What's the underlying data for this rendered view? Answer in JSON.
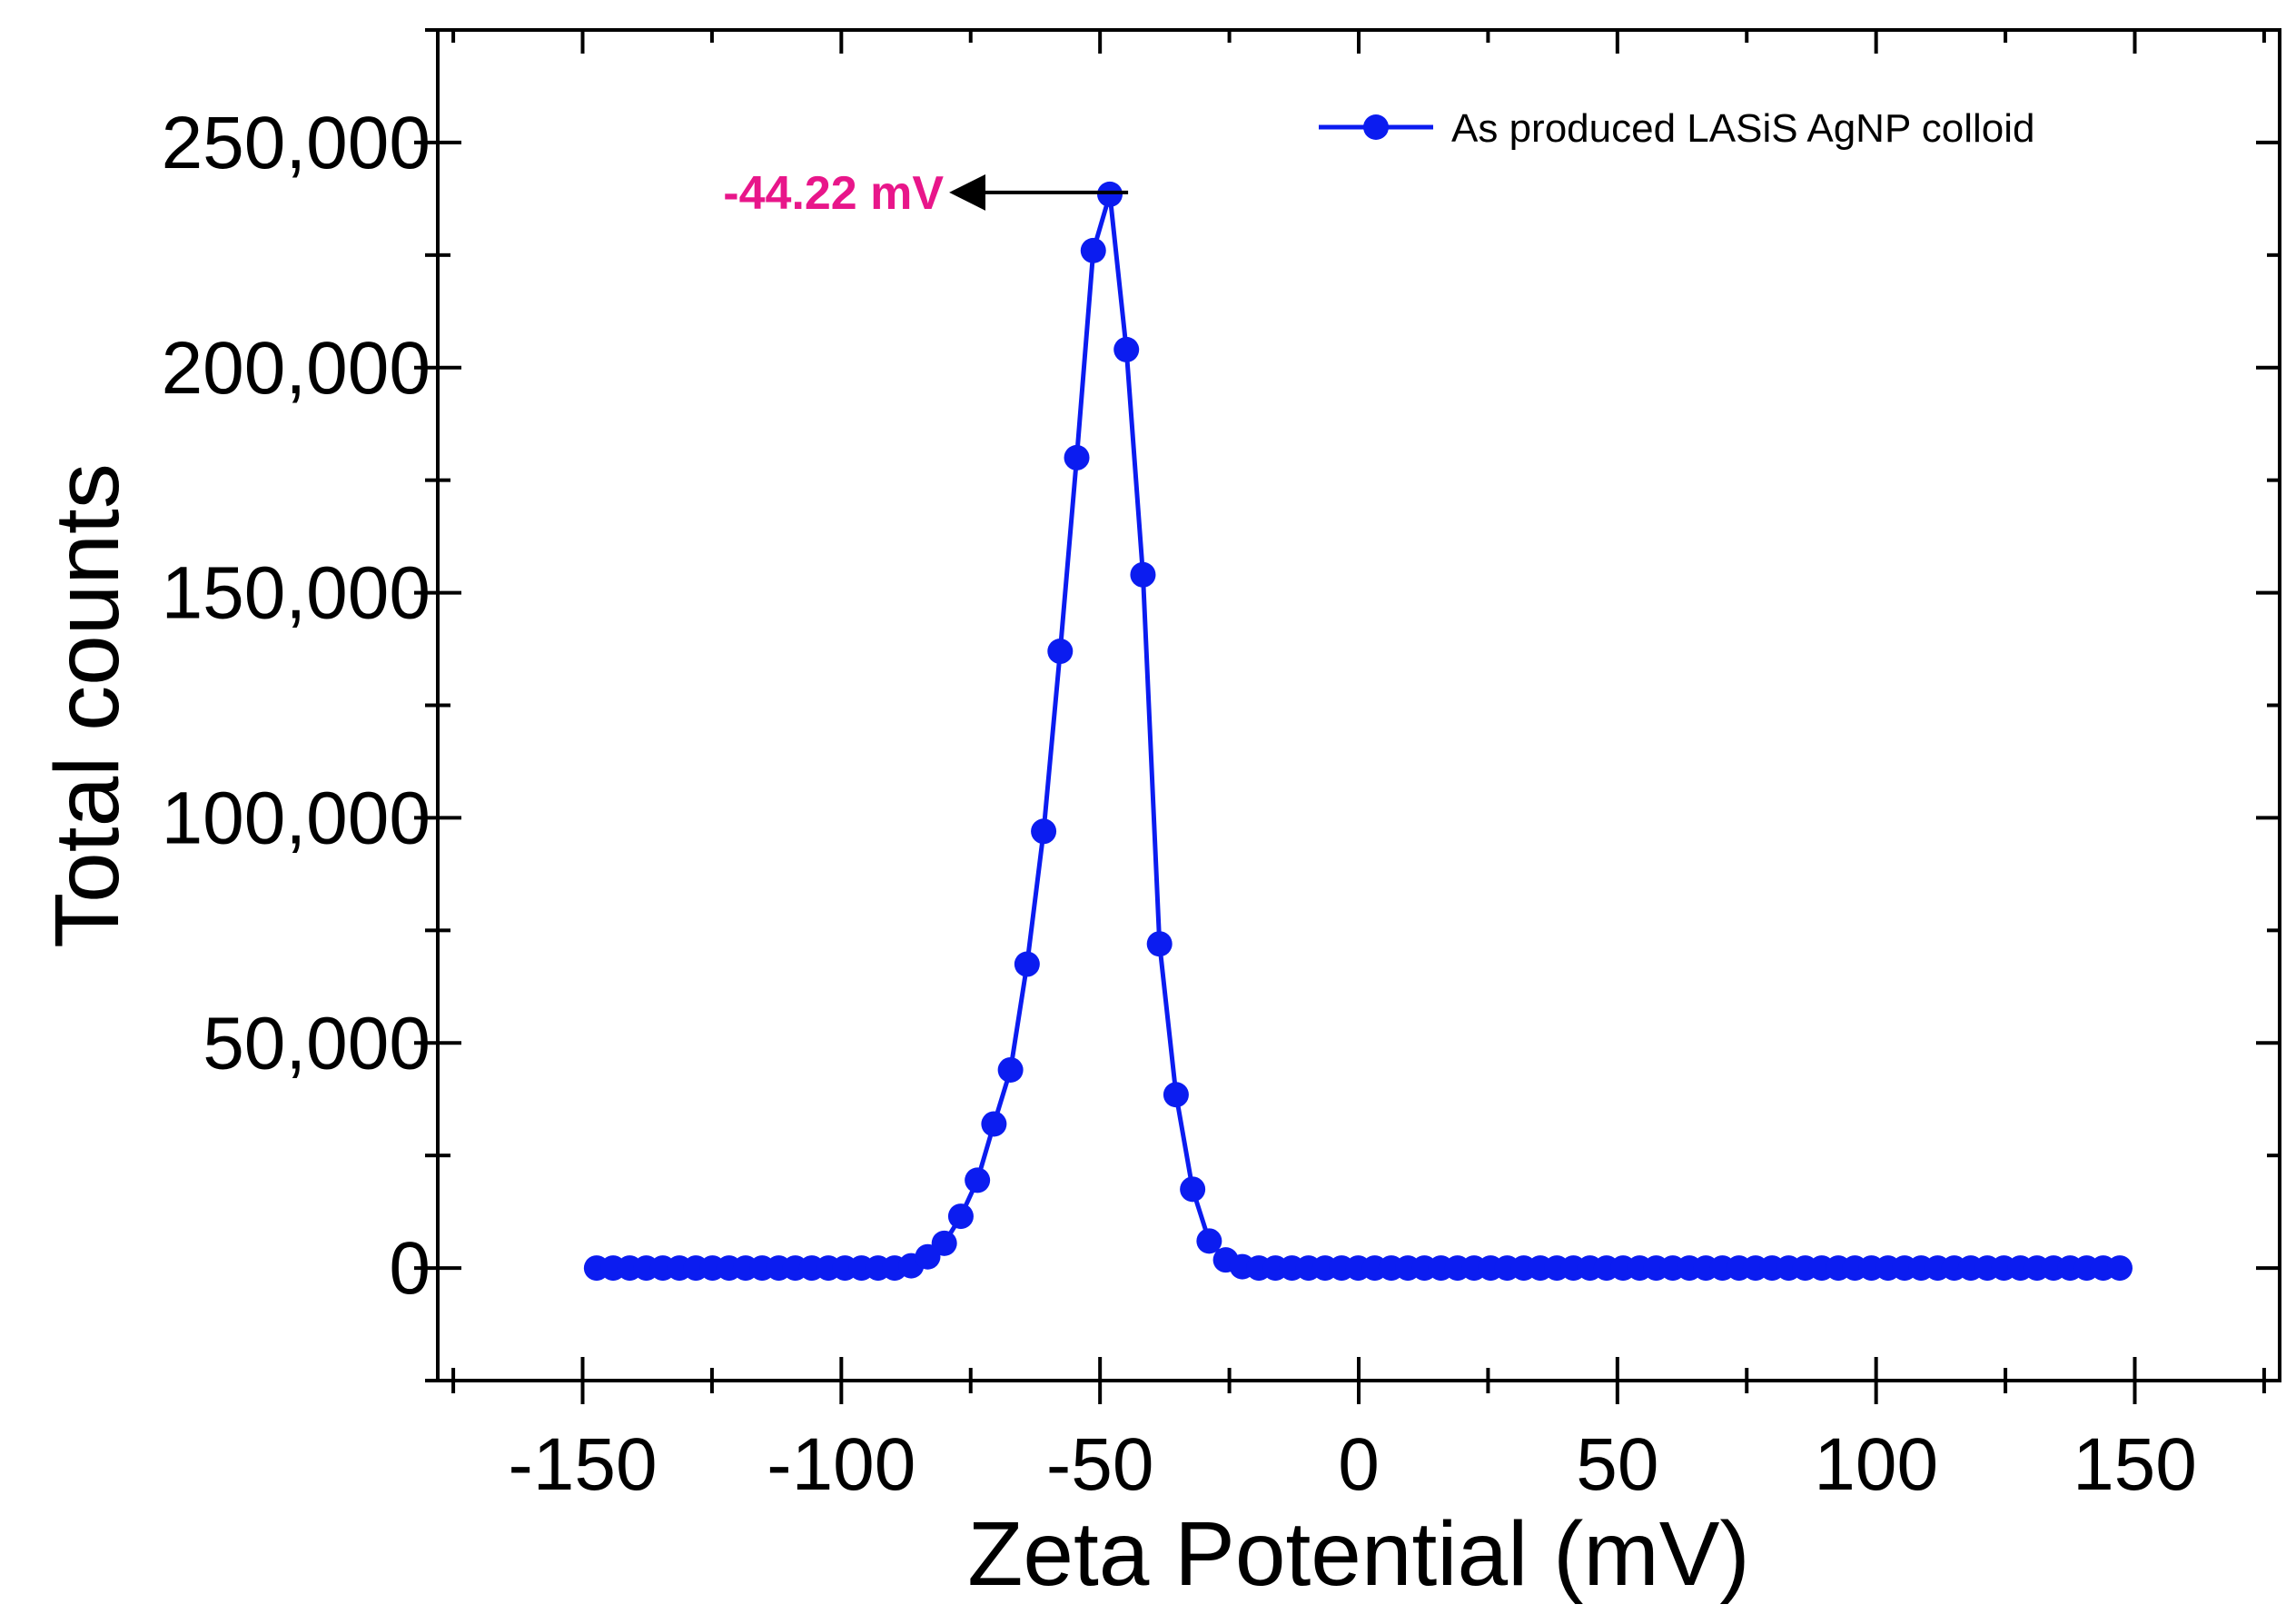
{
  "chart_data": {
    "type": "line",
    "title": "",
    "xlabel": "Zeta Potential (mV)",
    "ylabel": "Total counts",
    "xlim": [
      -178,
      178
    ],
    "ylim": [
      -25000,
      275000
    ],
    "xticks": [
      -150,
      -100,
      -50,
      0,
      50,
      100,
      150
    ],
    "xtick_labels": [
      "-150",
      "-100",
      "-50",
      "0",
      "50",
      "100",
      "150"
    ],
    "yticks": [
      0,
      50000,
      100000,
      150000,
      200000,
      250000
    ],
    "ytick_labels": [
      "0",
      "50,000",
      "100,000",
      "150,000",
      "200,000",
      "250,000"
    ],
    "legend_position": "top-right",
    "series": [
      {
        "name": "As produced LASiS AgNP colloid",
        "color": "#0b1cf0",
        "x": [
          -147.3,
          -144.1,
          -140.9,
          -137.7,
          -134.5,
          -131.3,
          -128.1,
          -124.9,
          -121.7,
          -118.5,
          -115.3,
          -112.1,
          -108.9,
          -105.7,
          -102.5,
          -99.3,
          -96.1,
          -92.9,
          -89.7,
          -86.5,
          -83.3,
          -80.1,
          -76.9,
          -73.7,
          -70.5,
          -67.3,
          -64.1,
          -60.9,
          -57.7,
          -54.5,
          -51.3,
          -48.1,
          -44.9,
          -41.7,
          -38.5,
          -35.3,
          -32.1,
          -28.9,
          -25.7,
          -22.5,
          -19.3,
          -16.1,
          -12.9,
          -9.7,
          -6.5,
          -3.3,
          -0.1,
          3.1,
          6.3,
          9.5,
          12.7,
          15.9,
          19.1,
          22.3,
          25.5,
          28.7,
          31.9,
          35.1,
          38.3,
          41.5,
          44.7,
          47.9,
          51.1,
          54.3,
          57.5,
          60.7,
          63.9,
          67.1,
          70.3,
          73.5,
          76.7,
          79.9,
          83.1,
          86.3,
          89.5,
          92.7,
          95.9,
          99.1,
          102.3,
          105.5,
          108.7,
          111.9,
          115.1,
          118.3,
          121.5,
          124.7,
          127.9,
          131.1,
          134.3,
          137.5,
          140.7,
          143.9,
          147.1
        ],
        "y": [
          0,
          0,
          0,
          0,
          0,
          0,
          0,
          0,
          0,
          0,
          0,
          0,
          0,
          0,
          0,
          0,
          0,
          0,
          0,
          500,
          2500,
          5500,
          11500,
          19500,
          32000,
          44000,
          67500,
          97000,
          137000,
          180000,
          226000,
          238500,
          204000,
          154000,
          72000,
          38500,
          17500,
          6000,
          1800,
          300,
          0,
          0,
          0,
          0,
          0,
          0,
          0,
          0,
          0,
          0,
          0,
          0,
          0,
          0,
          0,
          0,
          0,
          0,
          0,
          0,
          0,
          0,
          0,
          0,
          0,
          0,
          0,
          0,
          0,
          0,
          0,
          0,
          0,
          0,
          0,
          0,
          0,
          0,
          0,
          0,
          0,
          0,
          0,
          0,
          0,
          0,
          0,
          0,
          0,
          0,
          0,
          0,
          0
        ]
      }
    ],
    "annotations": [
      {
        "text": "-44.22 mV",
        "x": -44.22,
        "y": 238500,
        "color": "#e8168a",
        "arrow": "left"
      }
    ]
  }
}
